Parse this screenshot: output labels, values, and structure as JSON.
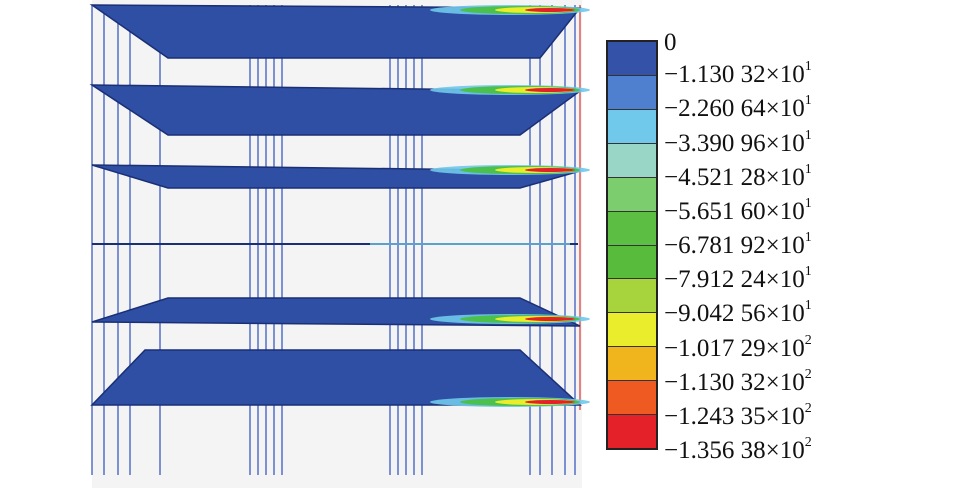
{
  "legend": {
    "zero_label": "0",
    "levels": [
      {
        "mantissa": "−1.130 32×10",
        "exp": "1",
        "color": "#3352a8"
      },
      {
        "mantissa": "−2.260 64×10",
        "exp": "1",
        "color": "#4f80d0"
      },
      {
        "mantissa": "−3.390 96×10",
        "exp": "1",
        "color": "#70c8ea"
      },
      {
        "mantissa": "−4.521 28×10",
        "exp": "1",
        "color": "#9ad6c6"
      },
      {
        "mantissa": "−5.651 60×10",
        "exp": "1",
        "color": "#7ccd6e"
      },
      {
        "mantissa": "−6.781 92×10",
        "exp": "1",
        "color": "#5cbf44"
      },
      {
        "mantissa": "−7.912 24×10",
        "exp": "1",
        "color": "#58bb3c"
      },
      {
        "mantissa": "−9.042 56×10",
        "exp": "1",
        "color": "#a7d43c"
      },
      {
        "mantissa": "−1.017 29×10",
        "exp": "2",
        "color": "#eaed2c"
      },
      {
        "mantissa": "−1.130 32×10",
        "exp": "2",
        "color": "#f0b41c"
      },
      {
        "mantissa": "−1.243 35×10",
        "exp": "2",
        "color": "#ef5a22"
      },
      {
        "mantissa": "−1.356 38×10",
        "exp": "2",
        "color": "#e42028"
      }
    ]
  },
  "colors": {
    "slab": "#2e4fa3",
    "slab_edge": "#1a2f75",
    "column": "#4a67c4",
    "hotspot_green": "#4cc04c",
    "hotspot_yellow": "#eaed2c",
    "hotspot_red": "#e42028",
    "hotspot_cyan": "#70c8ea"
  }
}
